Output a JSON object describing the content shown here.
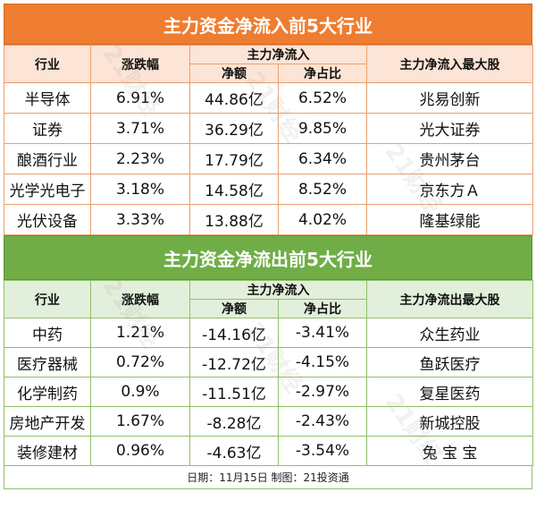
{
  "inflow": {
    "title": "主力资金净流入前5大行业",
    "headers": {
      "industry": "行业",
      "change": "涨跌幅",
      "main": "主力净流入",
      "net": "净额",
      "ratio": "净占比",
      "top_stock": "主力净流入最大股"
    },
    "rows": [
      {
        "industry": "半导体",
        "change": "6.91%",
        "net": "44.86亿",
        "ratio": "6.52%",
        "stock": "兆易创新"
      },
      {
        "industry": "证券",
        "change": "3.71%",
        "net": "36.29亿",
        "ratio": "9.85%",
        "stock": "光大证券"
      },
      {
        "industry": "酿酒行业",
        "change": "2.23%",
        "net": "17.79亿",
        "ratio": "6.34%",
        "stock": "贵州茅台"
      },
      {
        "industry": "光学光电子",
        "change": "3.18%",
        "net": "14.58亿",
        "ratio": "8.52%",
        "stock": "京东方Ａ"
      },
      {
        "industry": "光伏设备",
        "change": "3.33%",
        "net": "13.88亿",
        "ratio": "4.02%",
        "stock": "隆基绿能"
      }
    ]
  },
  "outflow": {
    "title": "主力资金净流出前5大行业",
    "headers": {
      "industry": "行业",
      "change": "涨跌幅",
      "main": "主力净流入",
      "net": "净额",
      "ratio": "净占比",
      "top_stock": "主力净流出最大股"
    },
    "rows": [
      {
        "industry": "中药",
        "change": "1.21%",
        "net": "-14.16亿",
        "ratio": "-3.41%",
        "stock": "众生药业"
      },
      {
        "industry": "医疗器械",
        "change": "0.72%",
        "net": "-12.72亿",
        "ratio": "-4.15%",
        "stock": "鱼跃医疗"
      },
      {
        "industry": "化学制药",
        "change": "0.9%",
        "net": "-11.51亿",
        "ratio": "-2.97%",
        "stock": "复星医药"
      },
      {
        "industry": "房地产开发",
        "change": "1.67%",
        "net": "-8.28亿",
        "ratio": "-2.43%",
        "stock": "新城控股"
      },
      {
        "industry": "装修建材",
        "change": "0.96%",
        "net": "-4.63亿",
        "ratio": "-3.54%",
        "stock": "兔 宝 宝"
      }
    ]
  },
  "footer": "日期：11月15日 制图：21投资通",
  "watermark": "21财经",
  "colors": {
    "inflow_banner": "#ee7d31",
    "inflow_header": "#fce4d6",
    "outflow_banner": "#70ad47",
    "outflow_header": "#e2efda"
  }
}
